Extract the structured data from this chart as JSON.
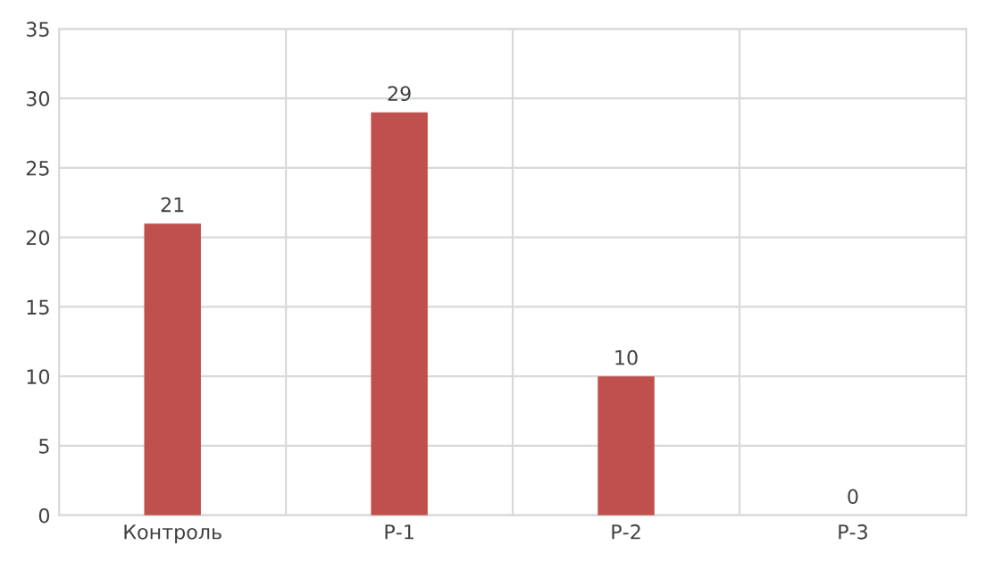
{
  "chart_data": {
    "type": "bar",
    "categories": [
      "Контроль",
      "Р-1",
      "Р-2",
      "Р-3"
    ],
    "values": [
      21,
      29,
      10,
      0
    ],
    "color": "#c0504d",
    "ylim": [
      0,
      35
    ],
    "yticks": [
      0,
      5,
      10,
      15,
      20,
      25,
      30,
      35
    ],
    "grid": true,
    "data_labels": true
  }
}
